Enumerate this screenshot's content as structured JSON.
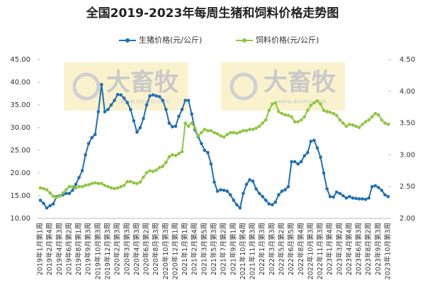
{
  "chart_data": {
    "type": "line",
    "title": "全国2019-2023年每周生猪和饲料价格走势图",
    "watermark": "大畜牧",
    "watermark_url": "www.dxumu.com",
    "categories": [
      "2019年1月第1周",
      null,
      null,
      "2019年2月第4周",
      null,
      null,
      "2019年4月第3周",
      null,
      null,
      "2019年6月第2周",
      null,
      null,
      "2019年8月第1周",
      null,
      null,
      "2019年9月第3周",
      null,
      null,
      "2019年10月第3周",
      null,
      null,
      "2019年12月第3周",
      null,
      null,
      "2020年2月第3周",
      null,
      null,
      "2020年3月第3周",
      null,
      null,
      "2020年4月第3周",
      null,
      null,
      "2020年6月第2周",
      null,
      null,
      "2020年8月第3周",
      null,
      null,
      "2020年10月第3周",
      null,
      null,
      "2020年12月第1周",
      null,
      null,
      "2021年1月第1周",
      null,
      null,
      "2021年2月第4周",
      null,
      null,
      "2021年3月第5周",
      null,
      null,
      "2021年5月第3周",
      null,
      null,
      "2021年7月第2周",
      null,
      null,
      "2021年9月第1周",
      null,
      null,
      "2021年10月第4周",
      null,
      null,
      "2021年11月第3周",
      null,
      null,
      "2022年1月第3周",
      null,
      null,
      "2022年3月第3周",
      null,
      null,
      "2022年5月第2周",
      null,
      null,
      "2022年6月第5周",
      null,
      null,
      "2022年8月第4周",
      null,
      null,
      "2022年10月第3周",
      null,
      null,
      "2022年11月第3周",
      null,
      null,
      "2023年1月第4周",
      null,
      null,
      "2023年3月第2周",
      null,
      null,
      "2023年4月第4周",
      null,
      null,
      "2023年6月第3周",
      null,
      null,
      "2023年8月第2周",
      null,
      null,
      "2023年9月第3周",
      null,
      null,
      "2023年10月第3周"
    ],
    "series": [
      {
        "name": "生猪价格(元/公斤)",
        "color": "#1f6fb4",
        "values": [
          14,
          13.3,
          12.3,
          12.8,
          13.2,
          14.8,
          15,
          15.2,
          15.5,
          15.5,
          16.2,
          17.5,
          19,
          20.5,
          24,
          26.5,
          27.8,
          28.5,
          33.5,
          39.5,
          33.5,
          34,
          35,
          36,
          37.3,
          37.2,
          36.5,
          35.5,
          34,
          31.5,
          29,
          30,
          32,
          35,
          37,
          37.2,
          37,
          36.8,
          36,
          34,
          31,
          30.2,
          30.3,
          32.5,
          34,
          36,
          36,
          33,
          29.5,
          28,
          26.5,
          25,
          24.5,
          22,
          18,
          16,
          16.3,
          16.2,
          16,
          15.2,
          14,
          13,
          12.3,
          15.5,
          17.5,
          18.5,
          18.2,
          16.5,
          15.5,
          14.8,
          14,
          13.2,
          13,
          13.6,
          15.2,
          16,
          16.3,
          17,
          22.5,
          22.5,
          22,
          22.5,
          23.8,
          24.5,
          27,
          27.2,
          25.5,
          23.5,
          20,
          16.5,
          14.8,
          14.7,
          15.8,
          15.5,
          15,
          14.5,
          14.8,
          14.5,
          14.4,
          14.3,
          14.3,
          14.2,
          14.5,
          17,
          17.2,
          16.8,
          16.2,
          15.2,
          14.8
        ]
      },
      {
        "name": "饲料价格(元/公斤)",
        "color": "#8dc63f",
        "axis": "y2",
        "values": [
          2.48,
          2.47,
          2.45,
          2.4,
          2.35,
          2.33,
          2.35,
          2.4,
          2.45,
          2.5,
          2.5,
          2.48,
          2.5,
          2.5,
          2.52,
          2.53,
          2.55,
          2.56,
          2.55,
          2.55,
          2.52,
          2.5,
          2.48,
          2.47,
          2.48,
          2.5,
          2.52,
          2.58,
          2.58,
          2.56,
          2.55,
          2.57,
          2.65,
          2.72,
          2.75,
          2.74,
          2.76,
          2.8,
          2.82,
          2.88,
          2.97,
          3.0,
          2.99,
          3.02,
          3.05,
          3.5,
          3.45,
          3.5,
          3.42,
          3.3,
          3.35,
          3.4,
          3.38,
          3.38,
          3.35,
          3.33,
          3.3,
          3.28,
          3.32,
          3.35,
          3.35,
          3.34,
          3.36,
          3.38,
          3.38,
          3.4,
          3.4,
          3.42,
          3.45,
          3.5,
          3.55,
          3.7,
          3.8,
          3.82,
          3.68,
          3.65,
          3.63,
          3.62,
          3.6,
          3.52,
          3.52,
          3.55,
          3.6,
          3.7,
          3.78,
          3.82,
          3.85,
          3.8,
          3.7,
          3.68,
          3.67,
          3.65,
          3.62,
          3.55,
          3.5,
          3.45,
          3.48,
          3.47,
          3.45,
          3.43,
          3.48,
          3.52,
          3.55,
          3.6,
          3.65,
          3.63,
          3.55,
          3.5,
          3.48
        ]
      }
    ],
    "ylim": [
      10,
      45
    ],
    "yticks": [
      {
        "value": 10,
        "label": "10.00"
      },
      {
        "value": 15,
        "label": "15.00"
      },
      {
        "value": 20,
        "label": "20.00"
      },
      {
        "value": 25,
        "label": "25.00"
      },
      {
        "value": 30,
        "label": "30.00"
      },
      {
        "value": 35,
        "label": "35.00"
      },
      {
        "value": 40,
        "label": "40.00"
      },
      {
        "value": 45,
        "label": "45.00"
      }
    ],
    "y2lim": [
      2,
      4.5
    ],
    "y2ticks": [
      {
        "value": 2,
        "label": "2.00"
      },
      {
        "value": 2.5,
        "label": "2.50"
      },
      {
        "value": 3,
        "label": "3.00"
      },
      {
        "value": 3.5,
        "label": "3.50"
      },
      {
        "value": 4,
        "label": "4.00"
      },
      {
        "value": 4.5,
        "label": "4.50"
      }
    ],
    "legend": "top"
  }
}
